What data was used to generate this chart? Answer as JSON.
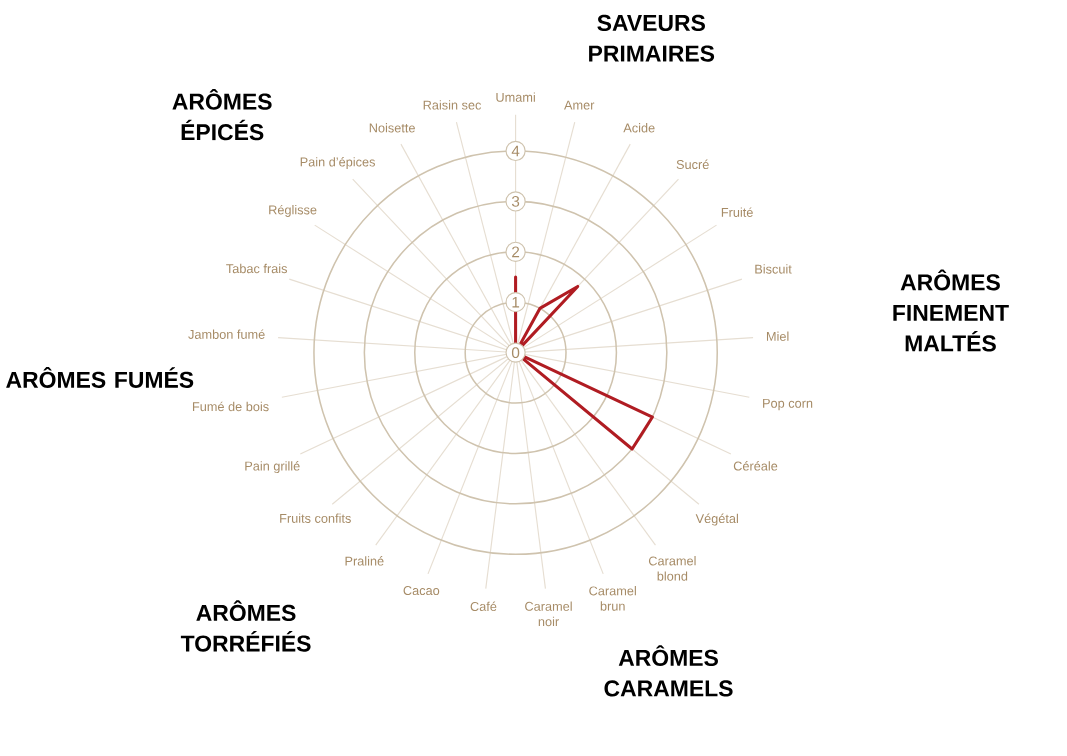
{
  "chart_data": {
    "type": "radar",
    "categories": [
      "Umami",
      "Amer",
      "Acide",
      "Sucré",
      "Fruité",
      "Biscuit",
      "Miel",
      "Pop corn",
      "Céréale",
      "Végétal",
      "Caramel blond",
      "Caramel brun",
      "Caramel noir",
      "Café",
      "Cacao",
      "Praliné",
      "Fruits confits",
      "Pain grillé",
      "Fumé de bois",
      "Jambon fumé",
      "Tabac frais",
      "Réglisse",
      "Pain d’épices",
      "Noisette",
      "Raisin sec"
    ],
    "series": [
      {
        "color": "#b01c22",
        "values": [
          1.5,
          0,
          1,
          1.8,
          0,
          0,
          0,
          0,
          3,
          3,
          0,
          0,
          0,
          0,
          0,
          0,
          0,
          0,
          0,
          0,
          0,
          0,
          0,
          0,
          0
        ]
      }
    ],
    "ylim": [
      0,
      4
    ],
    "yticks": [
      0,
      1,
      2,
      3,
      4
    ],
    "grid": true,
    "annotations": [
      "SAVEURS PRIMAIRES",
      "ARÔMES FINEMENT MALTÉS",
      "ARÔMES CARAMELS",
      "ARÔMES TORRÉFIÉS",
      "ARÔMES FUMÉS",
      "ARÔMES ÉPICÉS"
    ]
  }
}
